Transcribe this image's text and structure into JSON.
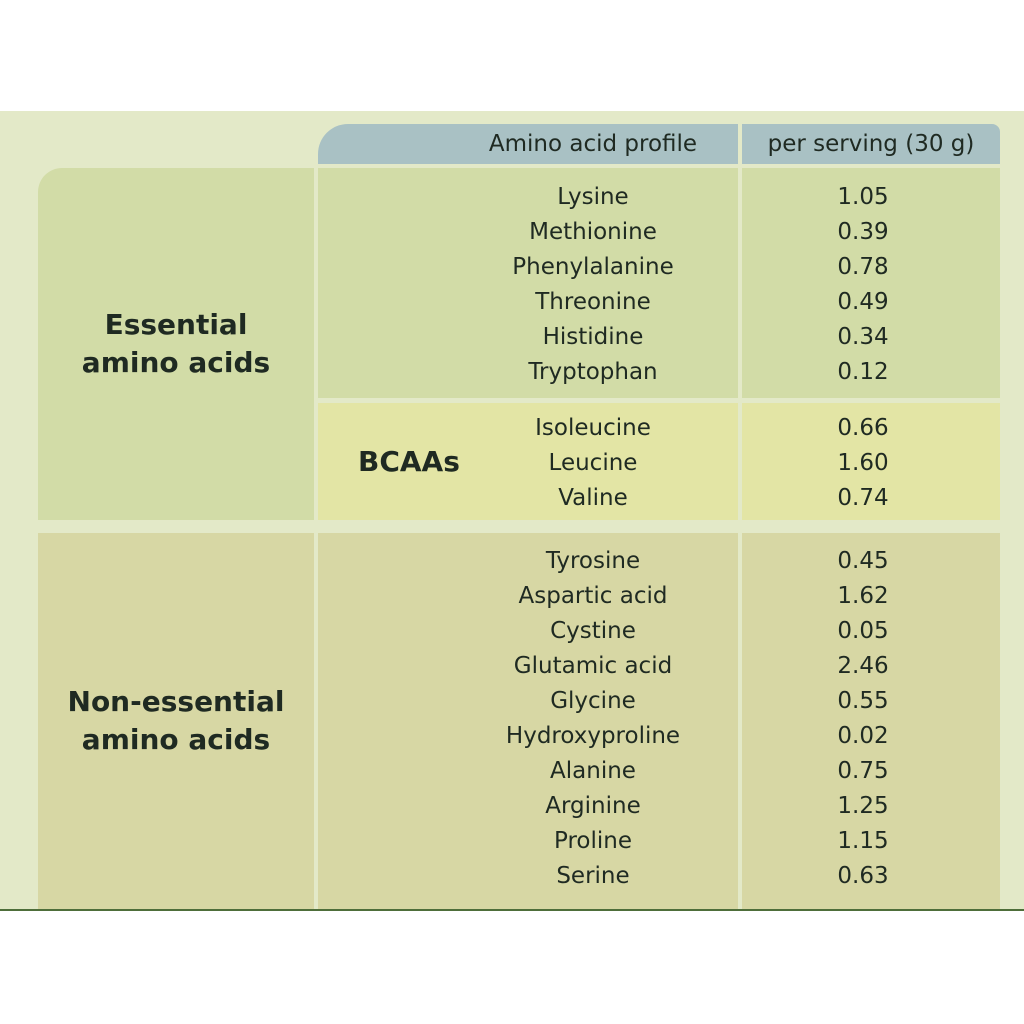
{
  "header": {
    "profile_label": "Amino acid profile",
    "serving_label": "per serving (30 g)"
  },
  "essential": {
    "label_line1": "Essential",
    "label_line2": "amino acids",
    "rows": [
      {
        "name": "Lysine",
        "value": "1.05"
      },
      {
        "name": "Methionine",
        "value": "0.39"
      },
      {
        "name": "Phenylalanine",
        "value": "0.78"
      },
      {
        "name": "Threonine",
        "value": "0.49"
      },
      {
        "name": "Histidine",
        "value": "0.34"
      },
      {
        "name": "Tryptophan",
        "value": "0.12"
      }
    ],
    "bcaa": {
      "label": "BCAAs",
      "rows": [
        {
          "name": "Isoleucine",
          "value": "0.66"
        },
        {
          "name": "Leucine",
          "value": "1.60"
        },
        {
          "name": "Valine",
          "value": "0.74"
        }
      ]
    }
  },
  "non_essential": {
    "label_line1": "Non-essential",
    "label_line2": "amino acids",
    "rows": [
      {
        "name": "Tyrosine",
        "value": "0.45"
      },
      {
        "name": "Aspartic acid",
        "value": "1.62"
      },
      {
        "name": "Cystine",
        "value": "0.05"
      },
      {
        "name": "Glutamic acid",
        "value": "2.46"
      },
      {
        "name": "Glycine",
        "value": "0.55"
      },
      {
        "name": "Hydroxyproline",
        "value": "0.02"
      },
      {
        "name": "Alanine",
        "value": "0.75"
      },
      {
        "name": "Arginine",
        "value": "1.25"
      },
      {
        "name": "Proline",
        "value": "1.15"
      },
      {
        "name": "Serine",
        "value": "0.63"
      }
    ]
  }
}
